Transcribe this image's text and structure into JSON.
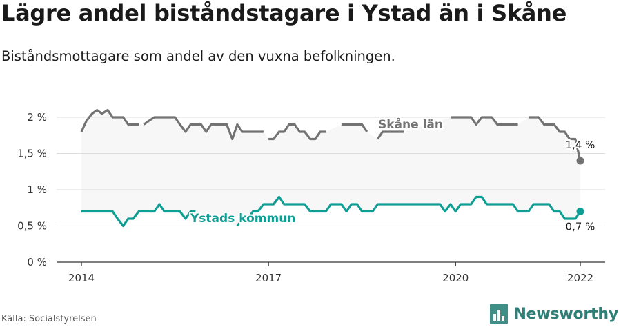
{
  "title": "Lägre andel biståndstagare i Ystad än i Skåne",
  "subtitle": "Biståndsmottagare som andel av den vuxna befolkningen.",
  "source": "Källa: Socialstyrelsen",
  "brand": "Newsworthy",
  "colors": {
    "ystad": "#0f9e94",
    "skane": "#737373",
    "band": "#f7f7f7",
    "grid": "#dddddd",
    "axis": "#333333",
    "brand": "#2e7f77"
  },
  "chart_data": {
    "type": "line",
    "x_unit": "year",
    "xlim": [
      2014,
      2022.3
    ],
    "ylim": [
      0,
      2
    ],
    "y_ticks": [
      0,
      0.5,
      1,
      1.5,
      2
    ],
    "y_tick_labels": [
      "0 %",
      "0,5 %",
      "1 %",
      "1,5 %",
      "2 %"
    ],
    "x_ticks": [
      2014,
      2017,
      2020,
      2022
    ],
    "x_tick_labels": [
      "2014",
      "2017",
      "2020",
      "2022"
    ],
    "fill_between_series": true,
    "series": [
      {
        "key": "skane",
        "name": "Skåne län",
        "end_label": "1,4 %",
        "segments": [
          [
            [
              2014.0,
              1.8
            ],
            [
              2014.08,
              1.95
            ],
            [
              2014.17,
              2.05
            ],
            [
              2014.25,
              2.1
            ],
            [
              2014.33,
              2.05
            ],
            [
              2014.42,
              2.1
            ],
            [
              2014.5,
              2.0
            ],
            [
              2014.58,
              2.0
            ],
            [
              2014.67,
              2.0
            ],
            [
              2014.75,
              1.9
            ],
            [
              2014.83,
              1.9
            ],
            [
              2014.92,
              1.9
            ]
          ],
          [
            [
              2015.0,
              1.9
            ],
            [
              2015.08,
              1.95
            ],
            [
              2015.17,
              2.0
            ],
            [
              2015.25,
              2.0
            ],
            [
              2015.33,
              2.0
            ],
            [
              2015.42,
              2.0
            ],
            [
              2015.5,
              2.0
            ],
            [
              2015.58,
              1.9
            ],
            [
              2015.67,
              1.8
            ],
            [
              2015.75,
              1.9
            ],
            [
              2015.83,
              1.9
            ],
            [
              2015.92,
              1.9
            ],
            [
              2016.0,
              1.8
            ],
            [
              2016.08,
              1.9
            ],
            [
              2016.17,
              1.9
            ],
            [
              2016.25,
              1.9
            ],
            [
              2016.33,
              1.9
            ],
            [
              2016.42,
              1.7
            ],
            [
              2016.5,
              1.9
            ],
            [
              2016.58,
              1.8
            ],
            [
              2016.67,
              1.8
            ],
            [
              2016.75,
              1.8
            ],
            [
              2016.83,
              1.8
            ],
            [
              2016.92,
              1.8
            ]
          ],
          [
            [
              2017.0,
              1.7
            ],
            [
              2017.08,
              1.7
            ],
            [
              2017.17,
              1.8
            ],
            [
              2017.25,
              1.8
            ],
            [
              2017.33,
              1.9
            ],
            [
              2017.42,
              1.9
            ],
            [
              2017.5,
              1.8
            ],
            [
              2017.58,
              1.8
            ],
            [
              2017.67,
              1.7
            ],
            [
              2017.75,
              1.7
            ],
            [
              2017.83,
              1.8
            ],
            [
              2017.92,
              1.8
            ]
          ],
          [
            [
              2018.17,
              1.9
            ],
            [
              2018.25,
              1.9
            ],
            [
              2018.33,
              1.9
            ],
            [
              2018.42,
              1.9
            ],
            [
              2018.5,
              1.9
            ],
            [
              2018.58,
              1.8
            ]
          ],
          [
            [
              2018.75,
              1.7
            ],
            [
              2018.83,
              1.8
            ],
            [
              2018.92,
              1.8
            ],
            [
              2019.0,
              1.8
            ],
            [
              2019.08,
              1.8
            ],
            [
              2019.17,
              1.8
            ]
          ],
          [
            [
              2019.92,
              2.0
            ],
            [
              2020.0,
              2.0
            ],
            [
              2020.08,
              2.0
            ],
            [
              2020.17,
              2.0
            ],
            [
              2020.25,
              2.0
            ],
            [
              2020.33,
              1.9
            ],
            [
              2020.42,
              2.0
            ],
            [
              2020.5,
              2.0
            ],
            [
              2020.58,
              2.0
            ],
            [
              2020.67,
              1.9
            ],
            [
              2020.75,
              1.9
            ],
            [
              2020.83,
              1.9
            ],
            [
              2020.92,
              1.9
            ],
            [
              2021.0,
              1.9
            ]
          ],
          [
            [
              2021.17,
              2.0
            ],
            [
              2021.25,
              2.0
            ],
            [
              2021.33,
              2.0
            ],
            [
              2021.42,
              1.9
            ],
            [
              2021.5,
              1.9
            ],
            [
              2021.58,
              1.9
            ],
            [
              2021.67,
              1.8
            ],
            [
              2021.75,
              1.8
            ],
            [
              2021.83,
              1.7
            ],
            [
              2021.92,
              1.7
            ],
            [
              2022.0,
              1.4
            ]
          ]
        ]
      },
      {
        "key": "ystad",
        "name": "Ystads kommun",
        "end_label": "0,7 %",
        "segments": [
          [
            [
              2014.0,
              0.7
            ],
            [
              2014.08,
              0.7
            ],
            [
              2014.17,
              0.7
            ],
            [
              2014.25,
              0.7
            ],
            [
              2014.33,
              0.7
            ],
            [
              2014.42,
              0.7
            ],
            [
              2014.5,
              0.7
            ],
            [
              2014.58,
              0.6
            ],
            [
              2014.67,
              0.5
            ],
            [
              2014.75,
              0.6
            ],
            [
              2014.83,
              0.6
            ],
            [
              2014.92,
              0.7
            ],
            [
              2015.0,
              0.7
            ],
            [
              2015.08,
              0.7
            ],
            [
              2015.17,
              0.7
            ],
            [
              2015.25,
              0.8
            ],
            [
              2015.33,
              0.7
            ],
            [
              2015.42,
              0.7
            ],
            [
              2015.5,
              0.7
            ],
            [
              2015.58,
              0.7
            ],
            [
              2015.67,
              0.6
            ],
            [
              2015.75,
              0.7
            ],
            [
              2015.83,
              0.7
            ]
          ],
          [
            [
              2016.5,
              0.5
            ],
            [
              2016.58,
              0.6
            ],
            [
              2016.67,
              0.6
            ],
            [
              2016.75,
              0.7
            ],
            [
              2016.83,
              0.7
            ],
            [
              2016.92,
              0.8
            ],
            [
              2017.0,
              0.8
            ],
            [
              2017.08,
              0.8
            ],
            [
              2017.17,
              0.9
            ],
            [
              2017.25,
              0.8
            ],
            [
              2017.33,
              0.8
            ],
            [
              2017.42,
              0.8
            ],
            [
              2017.5,
              0.8
            ],
            [
              2017.58,
              0.8
            ],
            [
              2017.67,
              0.7
            ],
            [
              2017.75,
              0.7
            ],
            [
              2017.83,
              0.7
            ],
            [
              2017.92,
              0.7
            ],
            [
              2018.0,
              0.8
            ],
            [
              2018.08,
              0.8
            ],
            [
              2018.17,
              0.8
            ],
            [
              2018.25,
              0.7
            ],
            [
              2018.33,
              0.8
            ],
            [
              2018.42,
              0.8
            ],
            [
              2018.5,
              0.7
            ],
            [
              2018.58,
              0.7
            ],
            [
              2018.67,
              0.7
            ],
            [
              2018.75,
              0.8
            ],
            [
              2018.83,
              0.8
            ],
            [
              2018.92,
              0.8
            ],
            [
              2019.0,
              0.8
            ],
            [
              2019.08,
              0.8
            ],
            [
              2019.17,
              0.8
            ],
            [
              2019.25,
              0.8
            ],
            [
              2019.33,
              0.8
            ],
            [
              2019.42,
              0.8
            ],
            [
              2019.5,
              0.8
            ],
            [
              2019.58,
              0.8
            ],
            [
              2019.67,
              0.8
            ],
            [
              2019.75,
              0.8
            ],
            [
              2019.83,
              0.7
            ],
            [
              2019.92,
              0.8
            ],
            [
              2020.0,
              0.7
            ],
            [
              2020.08,
              0.8
            ],
            [
              2020.17,
              0.8
            ],
            [
              2020.25,
              0.8
            ],
            [
              2020.33,
              0.9
            ],
            [
              2020.42,
              0.9
            ],
            [
              2020.5,
              0.8
            ],
            [
              2020.58,
              0.8
            ],
            [
              2020.67,
              0.8
            ],
            [
              2020.75,
              0.8
            ],
            [
              2020.83,
              0.8
            ],
            [
              2020.92,
              0.8
            ],
            [
              2021.0,
              0.7
            ],
            [
              2021.08,
              0.7
            ],
            [
              2021.17,
              0.7
            ],
            [
              2021.25,
              0.8
            ],
            [
              2021.33,
              0.8
            ],
            [
              2021.42,
              0.8
            ],
            [
              2021.5,
              0.8
            ],
            [
              2021.58,
              0.7
            ],
            [
              2021.67,
              0.7
            ],
            [
              2021.75,
              0.6
            ],
            [
              2021.83,
              0.6
            ],
            [
              2021.92,
              0.6
            ],
            [
              2022.0,
              0.7
            ]
          ]
        ]
      }
    ]
  }
}
